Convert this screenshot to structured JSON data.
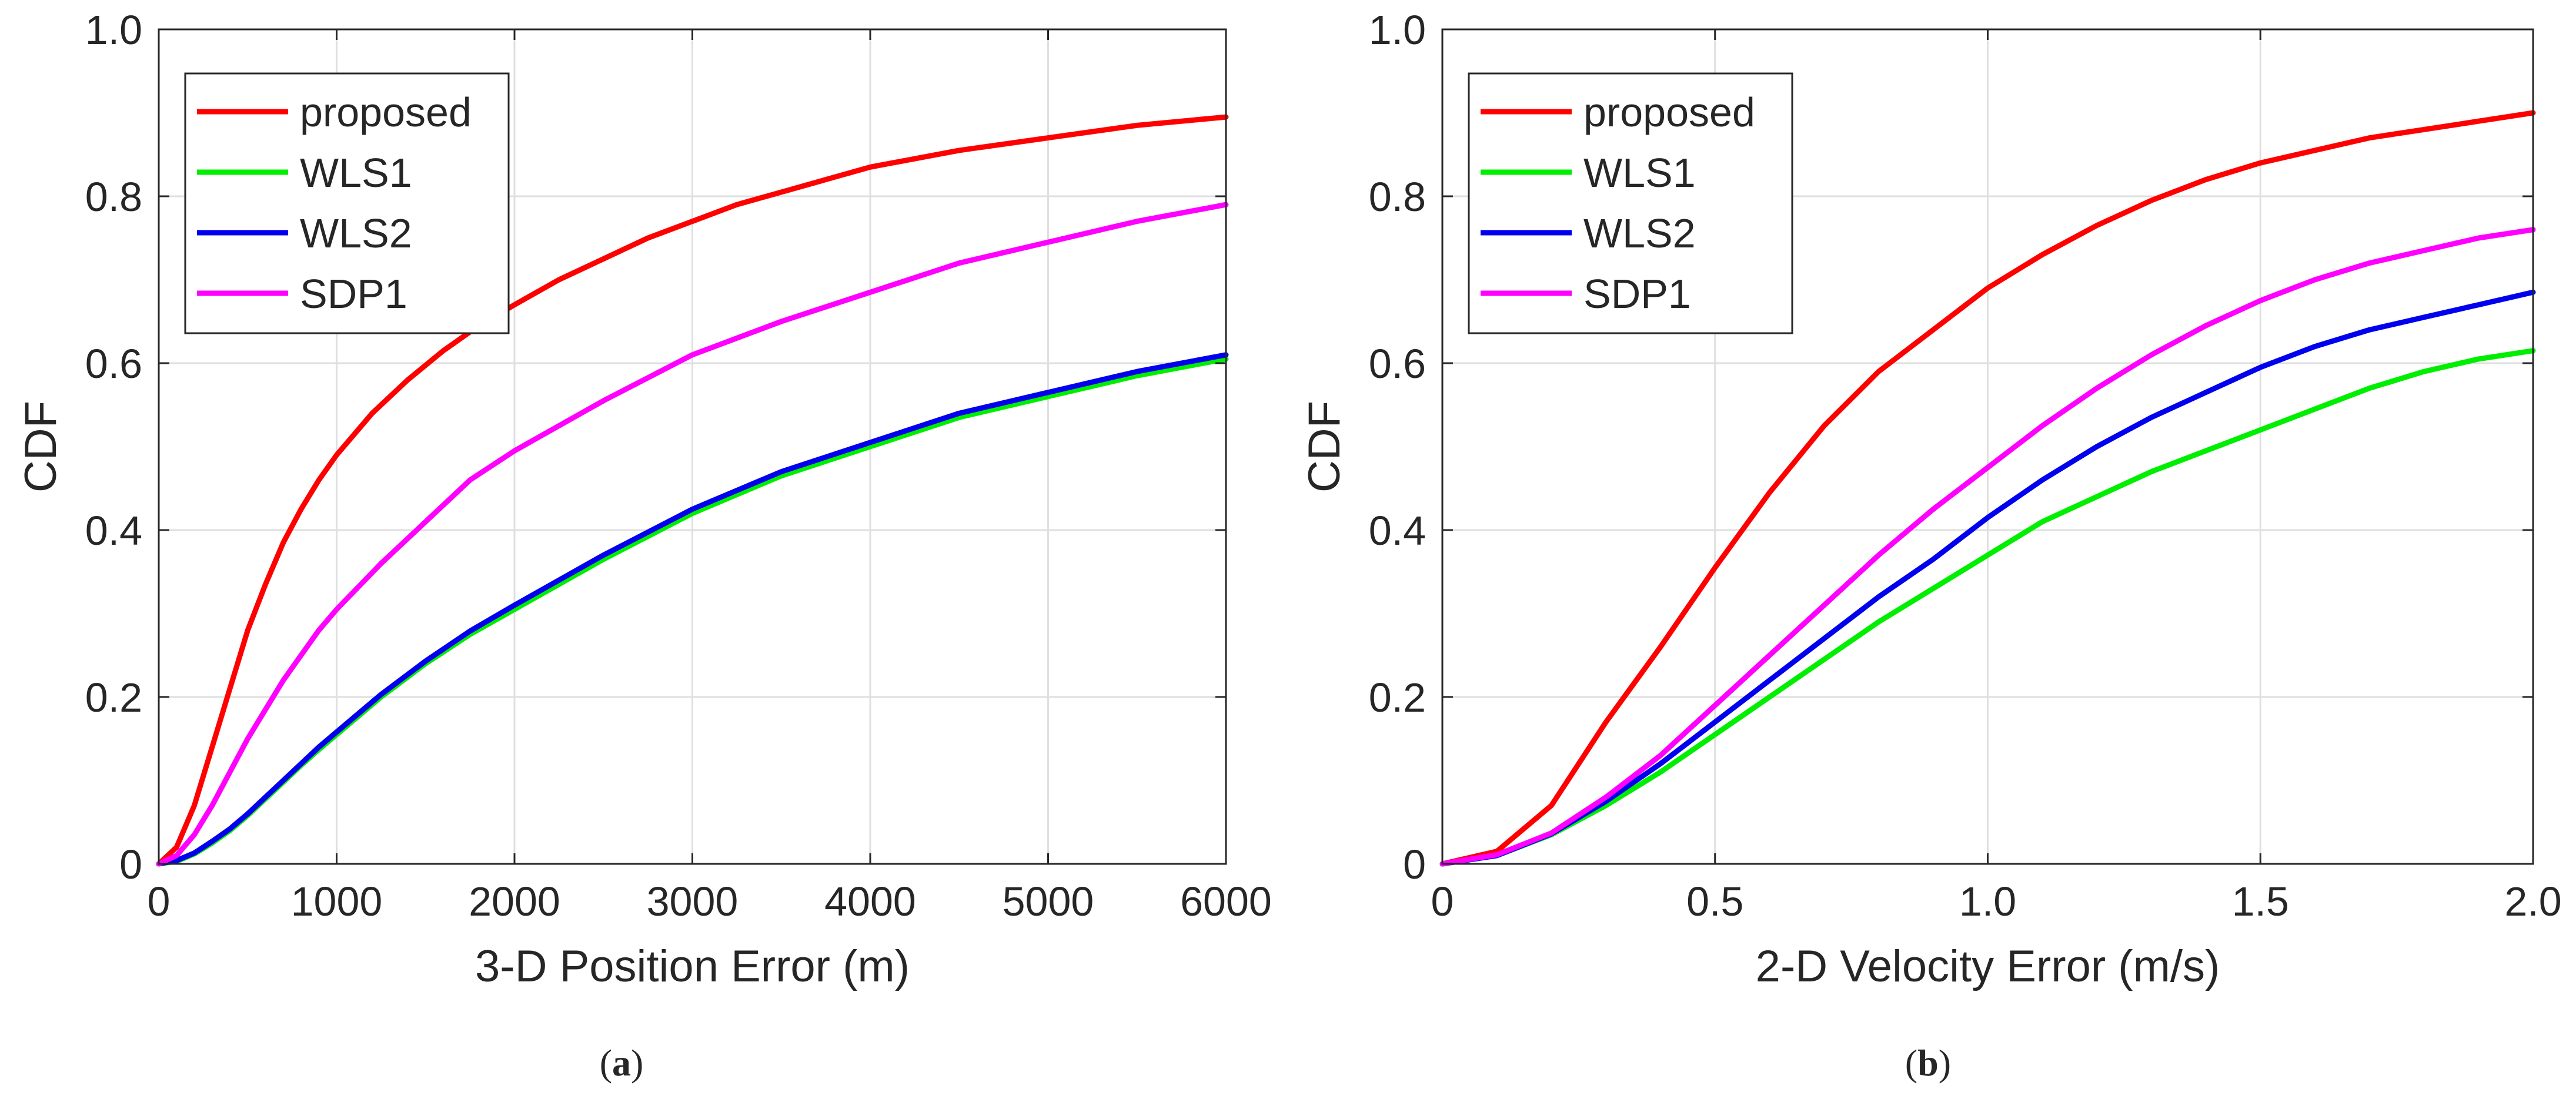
{
  "chart_data": [
    {
      "type": "line",
      "panel_label": "a",
      "xlabel": "3-D Position Error (m)",
      "ylabel": "CDF",
      "xlim": [
        0,
        6000
      ],
      "ylim": [
        0,
        1
      ],
      "xticks": [
        0,
        1000,
        2000,
        3000,
        4000,
        5000,
        6000
      ],
      "xtick_labels": [
        "0",
        "1000",
        "2000",
        "3000",
        "4000",
        "5000",
        "6000"
      ],
      "yticks": [
        0,
        0.2,
        0.4,
        0.6,
        0.8,
        1.0
      ],
      "ytick_labels": [
        "0",
        "0.2",
        "0.4",
        "0.6",
        "0.8",
        "1.0"
      ],
      "grid": true,
      "legend_position": "top-left",
      "series": [
        {
          "name": "proposed",
          "color": "#ff0000",
          "x": [
            0,
            100,
            200,
            300,
            400,
            500,
            600,
            700,
            800,
            900,
            1000,
            1200,
            1400,
            1600,
            1800,
            2000,
            2250,
            2500,
            2750,
            3000,
            3250,
            3500,
            3750,
            4000,
            4500,
            5000,
            5500,
            6000
          ],
          "y": [
            0,
            0.02,
            0.07,
            0.14,
            0.21,
            0.28,
            0.335,
            0.385,
            0.425,
            0.46,
            0.49,
            0.54,
            0.58,
            0.615,
            0.645,
            0.67,
            0.7,
            0.725,
            0.75,
            0.77,
            0.79,
            0.805,
            0.82,
            0.835,
            0.855,
            0.87,
            0.885,
            0.895
          ]
        },
        {
          "name": "WLS1",
          "color": "#00ee00",
          "x": [
            0,
            100,
            200,
            300,
            400,
            500,
            600,
            700,
            800,
            900,
            1000,
            1250,
            1500,
            1750,
            2000,
            2500,
            3000,
            3500,
            4000,
            4500,
            5000,
            5500,
            6000
          ],
          "y": [
            0,
            0.003,
            0.012,
            0.025,
            0.04,
            0.058,
            0.078,
            0.098,
            0.118,
            0.137,
            0.155,
            0.2,
            0.24,
            0.275,
            0.305,
            0.365,
            0.42,
            0.465,
            0.5,
            0.535,
            0.56,
            0.585,
            0.605
          ]
        },
        {
          "name": "WLS2",
          "color": "#0000ee",
          "x": [
            0,
            100,
            200,
            300,
            400,
            500,
            600,
            700,
            800,
            900,
            1000,
            1250,
            1500,
            1750,
            2000,
            2500,
            3000,
            3500,
            4000,
            4500,
            5000,
            5500,
            6000
          ],
          "y": [
            0,
            0.004,
            0.013,
            0.027,
            0.042,
            0.06,
            0.08,
            0.1,
            0.12,
            0.14,
            0.158,
            0.203,
            0.243,
            0.279,
            0.31,
            0.37,
            0.425,
            0.47,
            0.505,
            0.54,
            0.565,
            0.59,
            0.61
          ]
        },
        {
          "name": "SDP1",
          "color": "#ff00ff",
          "x": [
            0,
            100,
            200,
            300,
            400,
            500,
            600,
            700,
            800,
            900,
            1000,
            1250,
            1500,
            1750,
            2000,
            2500,
            3000,
            3500,
            4000,
            4500,
            5000,
            5500,
            6000
          ],
          "y": [
            0,
            0.01,
            0.035,
            0.07,
            0.11,
            0.15,
            0.185,
            0.22,
            0.25,
            0.28,
            0.305,
            0.36,
            0.41,
            0.46,
            0.495,
            0.555,
            0.61,
            0.65,
            0.685,
            0.72,
            0.745,
            0.77,
            0.79
          ]
        }
      ]
    },
    {
      "type": "line",
      "panel_label": "b",
      "xlabel": "2-D Velocity Error (m/s)",
      "ylabel": "CDF",
      "xlim": [
        0,
        2
      ],
      "ylim": [
        0,
        1
      ],
      "xticks": [
        0,
        0.5,
        1.0,
        1.5,
        2.0
      ],
      "xtick_labels": [
        "0",
        "0.5",
        "1.0",
        "1.5",
        "2.0"
      ],
      "yticks": [
        0,
        0.2,
        0.4,
        0.6,
        0.8,
        1.0
      ],
      "ytick_labels": [
        "0",
        "0.2",
        "0.4",
        "0.6",
        "0.8",
        "1.0"
      ],
      "grid": true,
      "legend_position": "top-left",
      "series": [
        {
          "name": "proposed",
          "color": "#ff0000",
          "x": [
            0,
            0.1,
            0.2,
            0.3,
            0.4,
            0.5,
            0.6,
            0.7,
            0.8,
            0.9,
            1.0,
            1.1,
            1.2,
            1.3,
            1.4,
            1.5,
            1.6,
            1.7,
            1.8,
            1.9,
            2.0
          ],
          "y": [
            0,
            0.015,
            0.07,
            0.17,
            0.26,
            0.355,
            0.445,
            0.525,
            0.59,
            0.64,
            0.69,
            0.73,
            0.765,
            0.795,
            0.82,
            0.84,
            0.855,
            0.87,
            0.88,
            0.89,
            0.9
          ]
        },
        {
          "name": "WLS1",
          "color": "#00ee00",
          "x": [
            0,
            0.1,
            0.2,
            0.3,
            0.4,
            0.5,
            0.6,
            0.7,
            0.8,
            0.9,
            1.0,
            1.1,
            1.2,
            1.3,
            1.4,
            1.5,
            1.6,
            1.7,
            1.8,
            1.9,
            2.0
          ],
          "y": [
            0,
            0.01,
            0.035,
            0.07,
            0.11,
            0.155,
            0.2,
            0.245,
            0.29,
            0.33,
            0.37,
            0.41,
            0.44,
            0.47,
            0.495,
            0.52,
            0.545,
            0.57,
            0.59,
            0.605,
            0.615
          ]
        },
        {
          "name": "WLS2",
          "color": "#0000ee",
          "x": [
            0,
            0.1,
            0.2,
            0.3,
            0.4,
            0.5,
            0.6,
            0.7,
            0.8,
            0.9,
            1.0,
            1.1,
            1.2,
            1.3,
            1.4,
            1.5,
            1.6,
            1.7,
            1.8,
            1.9,
            2.0
          ],
          "y": [
            0,
            0.01,
            0.036,
            0.075,
            0.12,
            0.17,
            0.22,
            0.27,
            0.32,
            0.365,
            0.415,
            0.46,
            0.5,
            0.535,
            0.565,
            0.595,
            0.62,
            0.64,
            0.655,
            0.67,
            0.685
          ]
        },
        {
          "name": "SDP1",
          "color": "#ff00ff",
          "x": [
            0,
            0.1,
            0.2,
            0.3,
            0.4,
            0.5,
            0.6,
            0.7,
            0.8,
            0.9,
            1.0,
            1.1,
            1.2,
            1.3,
            1.4,
            1.5,
            1.6,
            1.7,
            1.8,
            1.9,
            2.0
          ],
          "y": [
            0,
            0.011,
            0.037,
            0.08,
            0.13,
            0.19,
            0.25,
            0.31,
            0.37,
            0.425,
            0.475,
            0.525,
            0.57,
            0.61,
            0.645,
            0.675,
            0.7,
            0.72,
            0.735,
            0.75,
            0.76
          ]
        }
      ]
    }
  ],
  "captions": [
    "a",
    "b"
  ]
}
